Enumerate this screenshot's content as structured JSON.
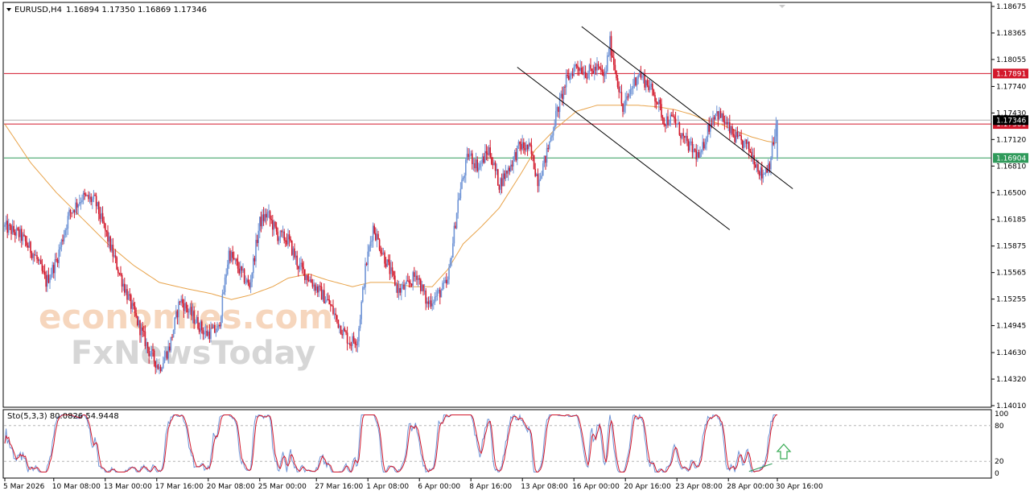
{
  "header": {
    "symbol": "EURUSD,H4",
    "ohlc": "1.16894 1.17350 1.16869 1.17346"
  },
  "watermark": {
    "line1": "economies.com",
    "line2": "FxNewsToday"
  },
  "colors": {
    "bull": "#6f94d6",
    "bear": "#d3182b",
    "ma": "#e8a34a",
    "resistance": "#d3182b",
    "support": "#2f9a5a",
    "stoch_main": "#6f94d6",
    "stoch_signal": "#d3182b",
    "arrow": "#3fae5a",
    "divergence": "#2f9a5a"
  },
  "price_axis": {
    "ticks": [
      "1.18675",
      "1.18365",
      "1.18055",
      "1.17740",
      "1.17430",
      "1.17120",
      "1.16810",
      "1.16500",
      "1.16185",
      "1.15875",
      "1.15565",
      "1.15255",
      "1.14945",
      "1.14630",
      "1.14320",
      "1.14010"
    ]
  },
  "levels": [
    {
      "name": "resistance-upper",
      "value": 1.17891,
      "label": "1.17891"
    },
    {
      "name": "resistance-lower",
      "value": 1.17301,
      "label": "1.17301"
    },
    {
      "name": "support",
      "value": 1.16904,
      "label": "1.16904"
    }
  ],
  "current_price": {
    "value": 1.17346,
    "label": "1.17346"
  },
  "stochastic": {
    "title": "Sto(5,3,3) 80.0826 54.9448",
    "levels": [
      "100",
      "80",
      "20",
      "0"
    ]
  },
  "time_axis": {
    "labels": [
      "5 Mar 2026",
      "10 Mar 08:00",
      "13 Mar 00:00",
      "17 Mar 16:00",
      "20 Mar 08:00",
      "25 Mar 00:00",
      "27 Mar 16:00",
      "1 Apr 08:00",
      "6 Apr 00:00",
      "8 Apr 16:00",
      "13 Apr 08:00",
      "16 Apr 00:00",
      "20 Apr 16:00",
      "23 Apr 08:00",
      "28 Apr 00:00",
      "30 Apr 16:00"
    ]
  },
  "chart_data": {
    "type": "candlestick",
    "symbol": "EURUSD",
    "timeframe": "H4",
    "ylim": [
      1.1401,
      1.18675
    ],
    "anchors": [
      [
        0,
        1.161
      ],
      [
        12,
        1.16
      ],
      [
        24,
        1.1575
      ],
      [
        32,
        1.1545
      ],
      [
        40,
        1.157
      ],
      [
        50,
        1.1625
      ],
      [
        60,
        1.1645
      ],
      [
        70,
        1.164
      ],
      [
        78,
        1.1605
      ],
      [
        88,
        1.156
      ],
      [
        100,
        1.151
      ],
      [
        112,
        1.1465
      ],
      [
        120,
        1.1445
      ],
      [
        128,
        1.147
      ],
      [
        136,
        1.1525
      ],
      [
        146,
        1.1505
      ],
      [
        156,
        1.1485
      ],
      [
        166,
        1.149
      ],
      [
        174,
        1.158
      ],
      [
        182,
        1.156
      ],
      [
        190,
        1.154
      ],
      [
        198,
        1.1615
      ],
      [
        204,
        1.1625
      ],
      [
        212,
        1.16
      ],
      [
        220,
        1.1595
      ],
      [
        228,
        1.1565
      ],
      [
        236,
        1.155
      ],
      [
        244,
        1.1535
      ],
      [
        252,
        1.152
      ],
      [
        260,
        1.1495
      ],
      [
        268,
        1.1475
      ],
      [
        274,
        1.148
      ],
      [
        280,
        1.156
      ],
      [
        286,
        1.161
      ],
      [
        292,
        1.1585
      ],
      [
        300,
        1.1555
      ],
      [
        306,
        1.1535
      ],
      [
        312,
        1.154
      ],
      [
        320,
        1.1555
      ],
      [
        328,
        1.152
      ],
      [
        336,
        1.153
      ],
      [
        344,
        1.1545
      ],
      [
        352,
        1.164
      ],
      [
        360,
        1.1695
      ],
      [
        368,
        1.168
      ],
      [
        376,
        1.17
      ],
      [
        384,
        1.166
      ],
      [
        392,
        1.168
      ],
      [
        400,
        1.1705
      ],
      [
        408,
        1.17
      ],
      [
        414,
        1.1665
      ],
      [
        420,
        1.169
      ],
      [
        428,
        1.174
      ],
      [
        436,
        1.178
      ],
      [
        444,
        1.18
      ],
      [
        452,
        1.179
      ],
      [
        460,
        1.1795
      ],
      [
        466,
        1.1785
      ],
      [
        470,
        1.1825
      ],
      [
        476,
        1.178
      ],
      [
        480,
        1.1745
      ],
      [
        486,
        1.177
      ],
      [
        492,
        1.179
      ],
      [
        500,
        1.1775
      ],
      [
        506,
        1.176
      ],
      [
        512,
        1.1735
      ],
      [
        520,
        1.1735
      ],
      [
        528,
        1.171
      ],
      [
        534,
        1.17
      ],
      [
        540,
        1.169
      ],
      [
        546,
        1.1725
      ],
      [
        552,
        1.1745
      ],
      [
        558,
        1.1735
      ],
      [
        564,
        1.172
      ],
      [
        570,
        1.171
      ],
      [
        576,
        1.1705
      ],
      [
        582,
        1.169
      ],
      [
        588,
        1.167
      ],
      [
        594,
        1.1685
      ],
      [
        600,
        1.1734
      ]
    ],
    "ma_anchors": [
      [
        0,
        1.173
      ],
      [
        20,
        1.1685
      ],
      [
        40,
        1.165
      ],
      [
        60,
        1.162
      ],
      [
        80,
        1.159
      ],
      [
        100,
        1.1565
      ],
      [
        120,
        1.1545
      ],
      [
        140,
        1.1538
      ],
      [
        160,
        1.1532
      ],
      [
        176,
        1.1525
      ],
      [
        190,
        1.153
      ],
      [
        208,
        1.154
      ],
      [
        220,
        1.155
      ],
      [
        236,
        1.1555
      ],
      [
        250,
        1.1548
      ],
      [
        270,
        1.154
      ],
      [
        284,
        1.1545
      ],
      [
        300,
        1.1545
      ],
      [
        316,
        1.154
      ],
      [
        332,
        1.154
      ],
      [
        344,
        1.156
      ],
      [
        356,
        1.159
      ],
      [
        370,
        1.161
      ],
      [
        384,
        1.1632
      ],
      [
        400,
        1.167
      ],
      [
        412,
        1.17
      ],
      [
        428,
        1.1725
      ],
      [
        444,
        1.1745
      ],
      [
        460,
        1.1752
      ],
      [
        476,
        1.1752
      ],
      [
        492,
        1.1752
      ],
      [
        508,
        1.175
      ],
      [
        520,
        1.1747
      ],
      [
        532,
        1.1742
      ],
      [
        544,
        1.1735
      ],
      [
        556,
        1.173
      ],
      [
        568,
        1.1722
      ],
      [
        580,
        1.1715
      ],
      [
        592,
        1.171
      ],
      [
        600,
        1.1708
      ]
    ],
    "channel": {
      "upper": [
        [
          448,
          1.1844
        ],
        [
          612,
          1.16545
        ]
      ],
      "lower": [
        [
          398,
          1.17965
        ],
        [
          563,
          1.16065
        ]
      ]
    }
  }
}
